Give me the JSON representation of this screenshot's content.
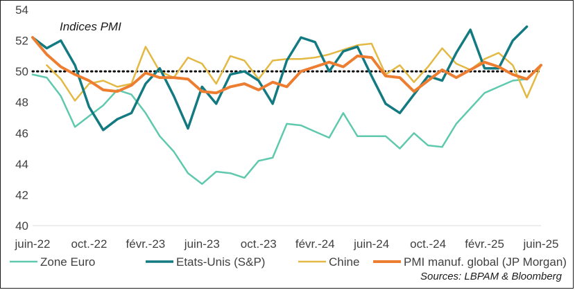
{
  "chart_data": {
    "type": "line",
    "title": "Indices PMI",
    "source": "Sources: LBPAM & Bloomberg",
    "ylim": [
      40,
      54
    ],
    "yticks": [
      40,
      42,
      44,
      46,
      48,
      50,
      52,
      54
    ],
    "xlim": [
      0,
      36
    ],
    "xticks": [
      {
        "pos": 0,
        "label": "juin-22"
      },
      {
        "pos": 4,
        "label": "oct.-22"
      },
      {
        "pos": 8,
        "label": "févr.-23"
      },
      {
        "pos": 12,
        "label": "juin-23"
      },
      {
        "pos": 16,
        "label": "oct.-23"
      },
      {
        "pos": 20,
        "label": "févr.-24"
      },
      {
        "pos": 24,
        "label": "juin-24"
      },
      {
        "pos": 28,
        "label": "oct.-24"
      },
      {
        "pos": 32,
        "label": "févr.-25"
      },
      {
        "pos": 36,
        "label": "juin-25"
      }
    ],
    "reference_line": 50,
    "series": [
      {
        "name": "Zone Euro",
        "color": "#5ec9ad",
        "values": [
          49.8,
          49.6,
          48.4,
          46.4,
          47.1,
          47.8,
          48.8,
          48.5,
          47.3,
          45.8,
          44.8,
          43.4,
          42.7,
          43.5,
          43.4,
          43.1,
          44.2,
          44.4,
          46.6,
          46.5,
          46.1,
          45.7,
          47.3,
          45.8,
          45.8,
          45.8,
          45.0,
          46.0,
          45.2,
          45.1,
          46.6,
          47.6,
          48.6,
          49.0,
          49.4,
          49.5,
          null
        ]
      },
      {
        "name": "Etats-Unis (S&P)",
        "color": "#127a80",
        "values": [
          52.2,
          51.5,
          52.0,
          50.4,
          47.7,
          46.2,
          46.9,
          47.3,
          49.2,
          50.2,
          48.4,
          46.3,
          49.0,
          47.9,
          49.8,
          50.0,
          49.4,
          47.9,
          50.7,
          52.2,
          51.9,
          50.0,
          51.3,
          51.6,
          49.7,
          47.9,
          47.3,
          48.5,
          49.7,
          49.4,
          51.2,
          52.7,
          50.2,
          50.2,
          52.0,
          52.9,
          null
        ]
      },
      {
        "name": "Chine",
        "color": "#e3b843",
        "values": [
          null,
          50.4,
          49.5,
          48.1,
          49.2,
          49.4,
          49.0,
          49.2,
          51.6,
          50.0,
          49.6,
          50.9,
          50.5,
          49.2,
          51.0,
          50.7,
          49.5,
          50.7,
          50.8,
          50.8,
          50.9,
          51.1,
          51.4,
          51.7,
          51.8,
          49.8,
          50.4,
          49.3,
          50.3,
          51.5,
          50.5,
          50.1,
          50.8,
          51.2,
          50.4,
          48.3,
          50.4
        ]
      },
      {
        "name": "PMI manuf. global (JP Morgan)",
        "color": "#ed7d31",
        "values": [
          52.2,
          51.1,
          50.3,
          49.8,
          49.4,
          48.8,
          48.7,
          49.1,
          49.9,
          49.6,
          49.6,
          49.5,
          48.7,
          48.6,
          49.0,
          49.2,
          48.8,
          49.3,
          49.0,
          50.0,
          50.3,
          50.6,
          50.3,
          51.0,
          50.9,
          49.7,
          49.6,
          48.7,
          49.4,
          50.1,
          49.6,
          50.1,
          50.6,
          50.3,
          49.8,
          49.5,
          50.4
        ]
      }
    ]
  }
}
